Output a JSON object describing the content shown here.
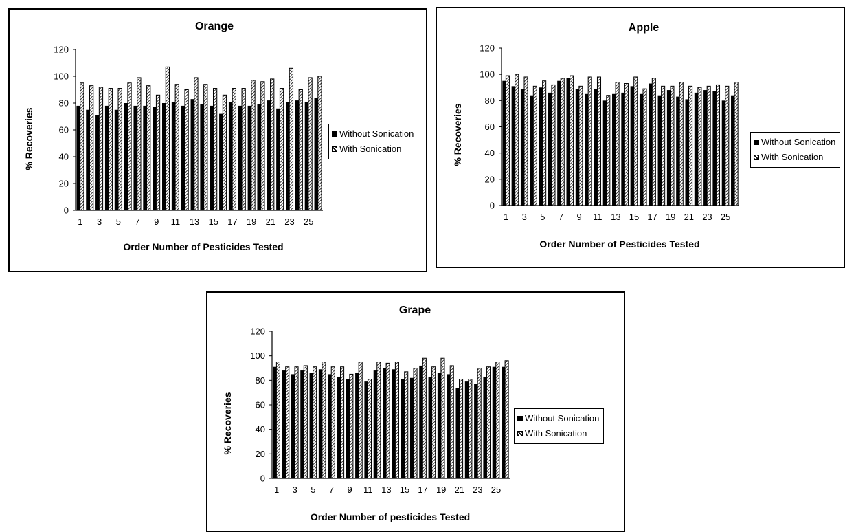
{
  "legend": {
    "without": "Without Sonication",
    "with": "With Sonication"
  },
  "chart_data": [
    {
      "type": "bar",
      "title": "Orange",
      "xlabel": "Order Number of Pesticides Tested",
      "ylabel": "% Recoveries",
      "ylim": [
        0,
        120
      ],
      "yticks": [
        "0",
        "20",
        "40",
        "60",
        "80",
        "100",
        "120"
      ],
      "xticks": [
        "1",
        "3",
        "5",
        "7",
        "9",
        "11",
        "13",
        "15",
        "17",
        "19",
        "21",
        "23",
        "25"
      ],
      "categories": [
        1,
        2,
        3,
        4,
        5,
        6,
        7,
        8,
        9,
        10,
        11,
        12,
        13,
        14,
        15,
        16,
        17,
        18,
        19,
        20,
        21,
        22,
        23,
        24,
        25,
        26
      ],
      "series": [
        {
          "name": "Without Sonication",
          "values": [
            78,
            75,
            71,
            78,
            75,
            80,
            78,
            78,
            77,
            80,
            81,
            78,
            83,
            79,
            78,
            72,
            81,
            78,
            78,
            79,
            82,
            76,
            81,
            82,
            81,
            84
          ]
        },
        {
          "name": "With Sonication",
          "values": [
            95,
            93,
            92,
            91,
            91,
            95,
            99,
            93,
            86,
            107,
            94,
            90,
            99,
            94,
            91,
            86,
            91,
            91,
            97,
            96,
            98,
            91,
            106,
            90,
            99,
            100
          ]
        }
      ],
      "legend_position": "right"
    },
    {
      "type": "bar",
      "title": "Apple",
      "xlabel": "Order Number of Pesticides Tested",
      "ylabel": "% Recoveries",
      "ylim": [
        0,
        120
      ],
      "yticks": [
        "0",
        "20",
        "40",
        "60",
        "80",
        "100",
        "120"
      ],
      "xticks": [
        "1",
        "3",
        "5",
        "7",
        "9",
        "11",
        "13",
        "15",
        "17",
        "19",
        "21",
        "23",
        "25"
      ],
      "categories": [
        1,
        2,
        3,
        4,
        5,
        6,
        7,
        8,
        9,
        10,
        11,
        12,
        13,
        14,
        15,
        16,
        17,
        18,
        19,
        20,
        21,
        22,
        23,
        24,
        25,
        26
      ],
      "series": [
        {
          "name": "Without Sonication",
          "values": [
            95,
            91,
            89,
            84,
            90,
            86,
            95,
            97,
            89,
            85,
            89,
            80,
            85,
            86,
            91,
            85,
            93,
            84,
            88,
            83,
            81,
            86,
            88,
            87,
            80,
            84
          ]
        },
        {
          "name": "With Sonication",
          "values": [
            99,
            100,
            98,
            91,
            95,
            92,
            97,
            99,
            91,
            98,
            98,
            84,
            94,
            93,
            98,
            89,
            97,
            91,
            91,
            94,
            91,
            90,
            91,
            92,
            91,
            94
          ]
        }
      ],
      "legend_position": "right"
    },
    {
      "type": "bar",
      "title": "Grape",
      "xlabel": "Order Number of pesticides Tested",
      "ylabel": "% Recoveries",
      "ylim": [
        0,
        120
      ],
      "yticks": [
        "0",
        "20",
        "40",
        "60",
        "80",
        "100",
        "120"
      ],
      "xticks": [
        "1",
        "3",
        "5",
        "7",
        "9",
        "11",
        "13",
        "15",
        "17",
        "19",
        "21",
        "23",
        "25"
      ],
      "categories": [
        1,
        2,
        3,
        4,
        5,
        6,
        7,
        8,
        9,
        10,
        11,
        12,
        13,
        14,
        15,
        16,
        17,
        18,
        19,
        20,
        21,
        22,
        23,
        24,
        25,
        26
      ],
      "series": [
        {
          "name": "Without Sonication",
          "values": [
            91,
            88,
            85,
            88,
            86,
            89,
            85,
            83,
            81,
            86,
            79,
            88,
            90,
            89,
            81,
            82,
            92,
            83,
            86,
            85,
            74,
            79,
            77,
            83,
            91,
            91
          ]
        },
        {
          "name": "With Sonication",
          "values": [
            95,
            91,
            91,
            92,
            91,
            95,
            91,
            91,
            85,
            95,
            81,
            95,
            94,
            95,
            87,
            90,
            98,
            91,
            98,
            92,
            81,
            81,
            90,
            91,
            95,
            96
          ]
        }
      ],
      "legend_position": "right"
    }
  ]
}
